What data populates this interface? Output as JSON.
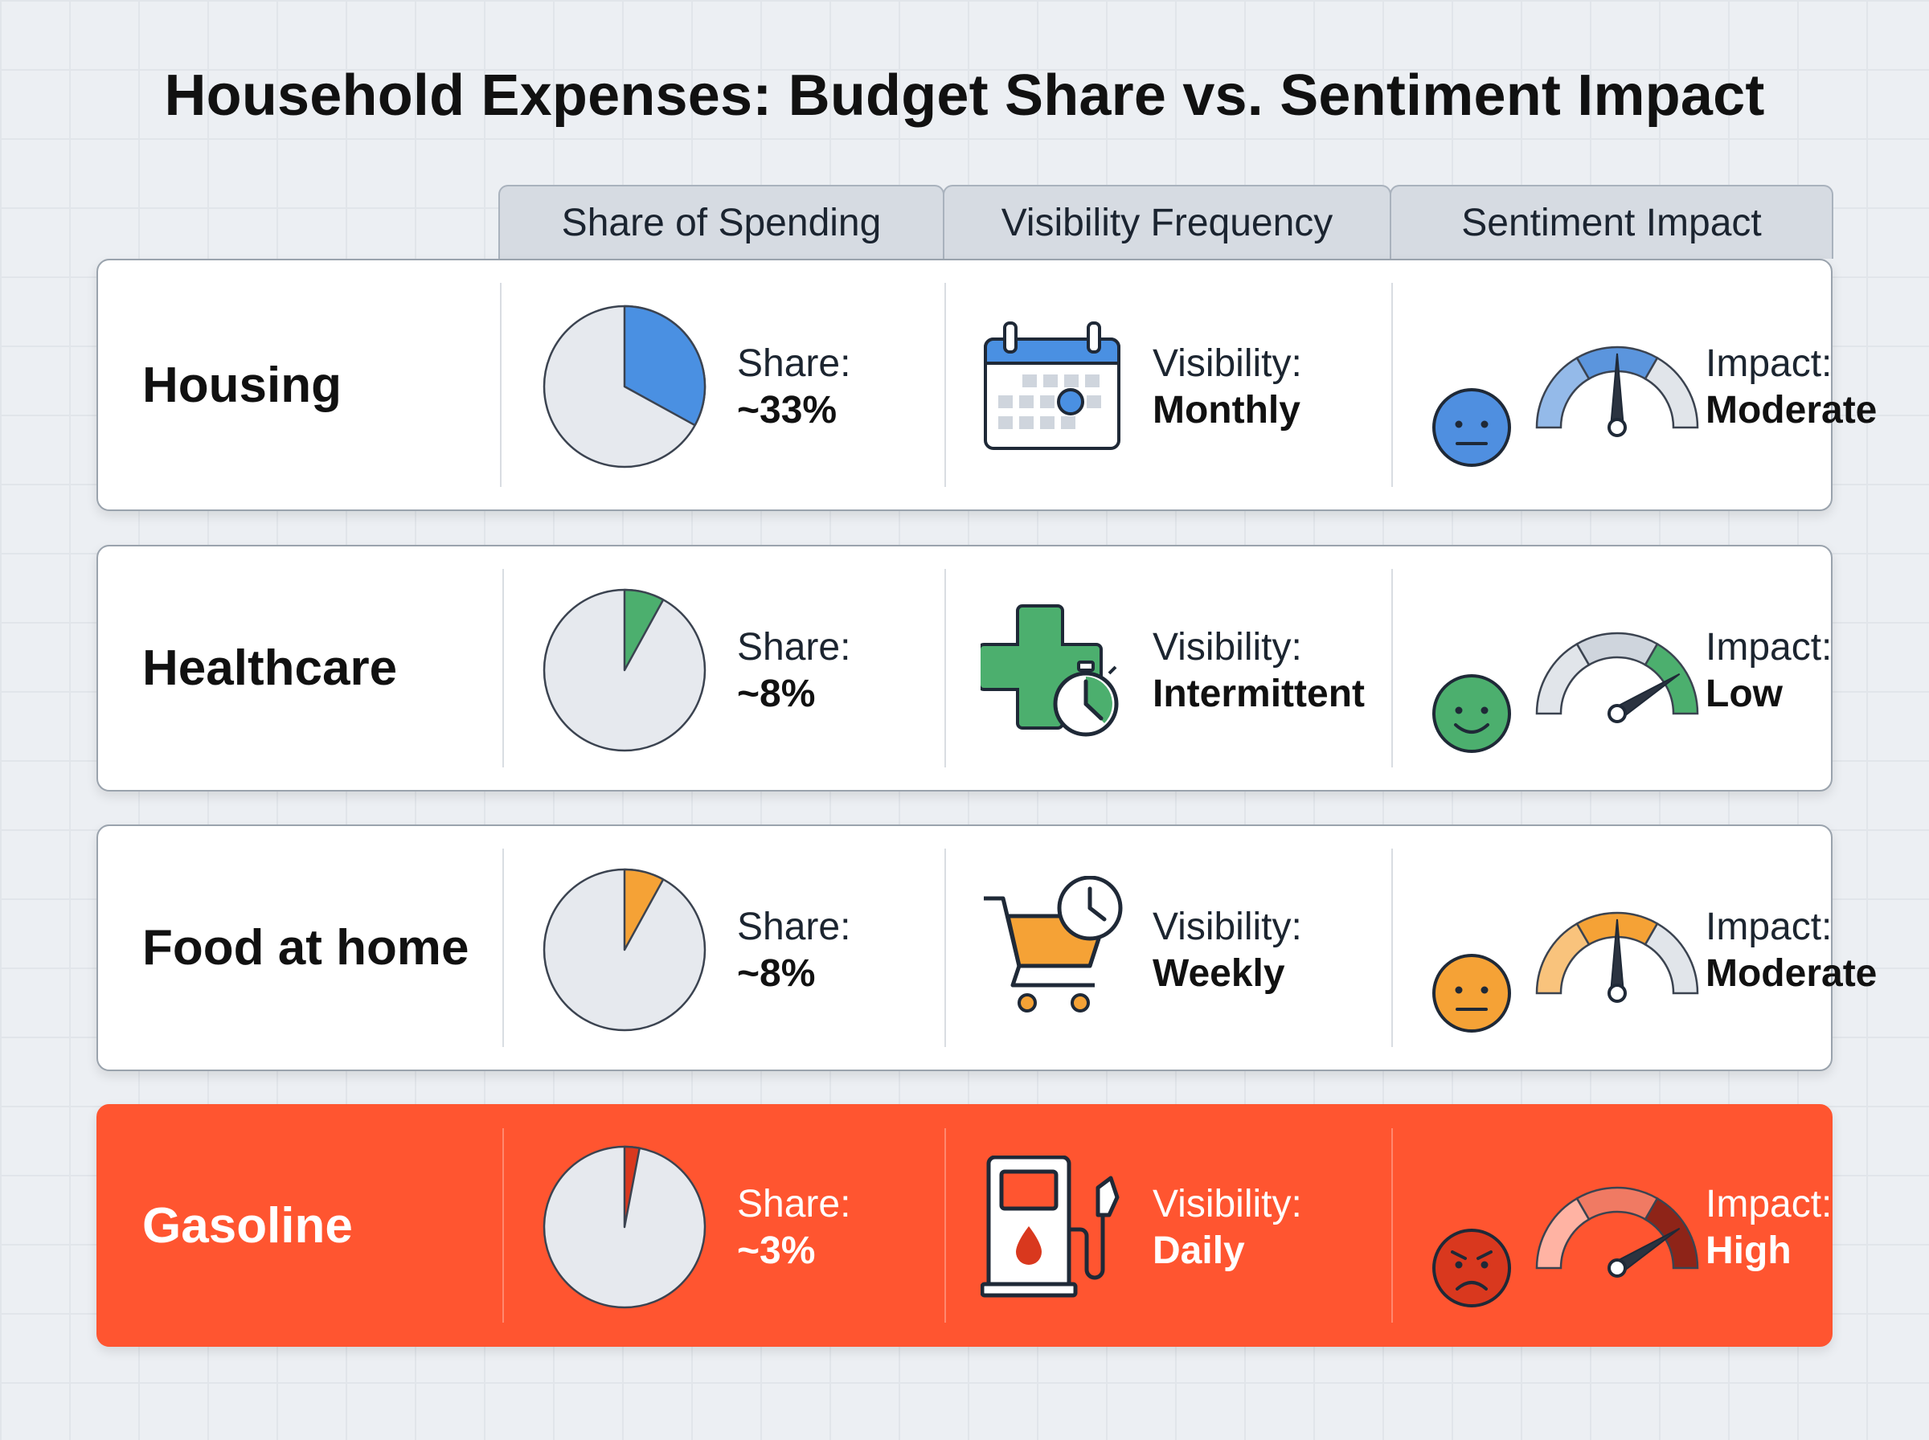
{
  "title": "Household Expenses: Budget Share vs. Sentiment Impact",
  "columns": [
    "Share of Spending",
    "Visibility Frequency",
    "Sentiment Impact"
  ],
  "rows": [
    {
      "label": "Housing",
      "share_caption": "Share:",
      "share_text": "~33%",
      "share_fraction": 0.33,
      "pie_color": "#4a90e2",
      "visibility_caption": "Visibility:",
      "visibility_value": "Monthly",
      "visibility_icon": "calendar-icon",
      "impact_caption": "Impact:",
      "impact_value": "Moderate",
      "impact_level": 0.5,
      "gauge_color": "#5b95dd",
      "face": "neutral-face-icon",
      "face_color": "#4f8fe0",
      "highlight": false
    },
    {
      "label": "Healthcare",
      "share_caption": "Share:",
      "share_text": "~8%",
      "share_fraction": 0.08,
      "pie_color": "#4caf6e",
      "visibility_caption": "Visibility:",
      "visibility_value": "Intermittent",
      "visibility_icon": "medical-cross-stopwatch-icon",
      "impact_caption": "Impact:",
      "impact_value": "Low",
      "impact_level": 0.82,
      "gauge_color": "#4caf6e",
      "face": "smile-face-icon",
      "face_color": "#4caf6e",
      "highlight": false
    },
    {
      "label": "Food at home",
      "share_caption": "Share:",
      "share_text": "~8%",
      "share_fraction": 0.08,
      "pie_color": "#f5a236",
      "visibility_caption": "Visibility:",
      "visibility_value": "Weekly",
      "visibility_icon": "shopping-cart-clock-icon",
      "impact_caption": "Impact:",
      "impact_value": "Moderate",
      "impact_level": 0.5,
      "gauge_color": "#f5a236",
      "face": "neutral-face-icon",
      "face_color": "#f5a236",
      "highlight": false
    },
    {
      "label": "Gasoline",
      "share_caption": "Share:",
      "share_text": "~3%",
      "share_fraction": 0.03,
      "pie_color": "#d9381e",
      "visibility_caption": "Visibility:",
      "visibility_value": "Daily",
      "visibility_icon": "gas-pump-icon",
      "impact_caption": "Impact:",
      "impact_value": "High",
      "impact_level": 0.82,
      "gauge_color": "#c0392b",
      "face": "angry-face-icon",
      "face_color": "#d9381e",
      "highlight": true
    }
  ]
}
